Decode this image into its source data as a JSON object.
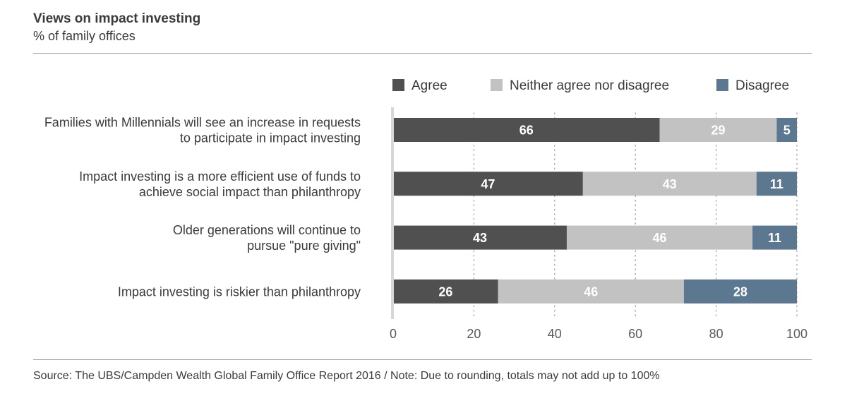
{
  "header": {
    "title": "Views on impact investing",
    "subtitle": "% of family offices"
  },
  "footer": {
    "source": "Source: The UBS/Campden Wealth Global Family Office Report 2016  /  Note: Due to rounding, totals may not add up to 100%"
  },
  "colors": {
    "agree": "#505050",
    "neither": "#c2c2c2",
    "disagree": "#5c7891",
    "axis": "#d7d7d7",
    "text": "#3a3a3a",
    "tick": "#5a5a5a"
  },
  "chart_data": {
    "type": "bar",
    "orientation": "horizontal",
    "stacked": true,
    "categories": [
      [
        "Families with Millennials will see an increase in requests",
        "to participate in impact investing"
      ],
      [
        "Impact investing is a more efficient use of funds to",
        "achieve social impact than philanthropy"
      ],
      [
        "Older generations will continue to",
        "pursue \"pure giving\""
      ],
      [
        "Impact investing is riskier than philanthropy"
      ]
    ],
    "series": [
      {
        "name": "Agree",
        "values": [
          66,
          47,
          43,
          26
        ]
      },
      {
        "name": "Neither agree nor disagree",
        "values": [
          29,
          43,
          46,
          46
        ]
      },
      {
        "name": "Disagree",
        "values": [
          5,
          11,
          11,
          28
        ]
      }
    ],
    "xlim": [
      0,
      100
    ],
    "xticks": [
      0,
      20,
      40,
      60,
      80,
      100
    ],
    "grid": "dotted vertical",
    "legend": "top-right"
  }
}
